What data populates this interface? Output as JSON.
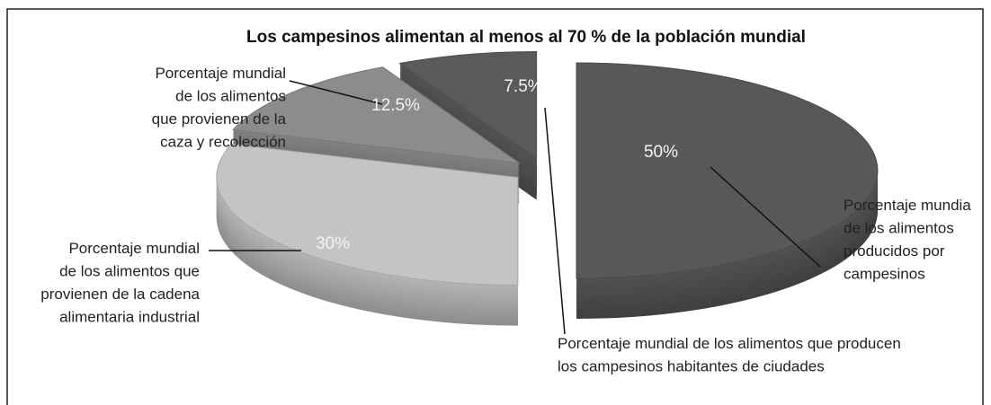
{
  "chart_data": {
    "type": "pie",
    "title": "Los campesinos alimentan al menos al 70 % de la población mundial",
    "categories": [
      "Porcentaje mundia\nde los alimentos\nproducidos por\ncampesinos",
      "Porcentaje mundial\nde los alimentos que\nprovienen de la cadena\nalimentaria industrial",
      "Porcentaje mundial\nde los alimentos\nque provienen de la\ncaza y recolección",
      "Porcentaje mundial de los alimentos que producen\nlos campesinos habitantes de ciudades"
    ],
    "values": [
      50,
      30,
      12.5,
      7.5
    ],
    "value_labels": [
      "50%",
      "30%",
      "12.5%",
      "7.5%"
    ],
    "colors": [
      "#585858",
      "#c4c4c4",
      "#8c8c8c",
      "#5a5a5a"
    ]
  }
}
